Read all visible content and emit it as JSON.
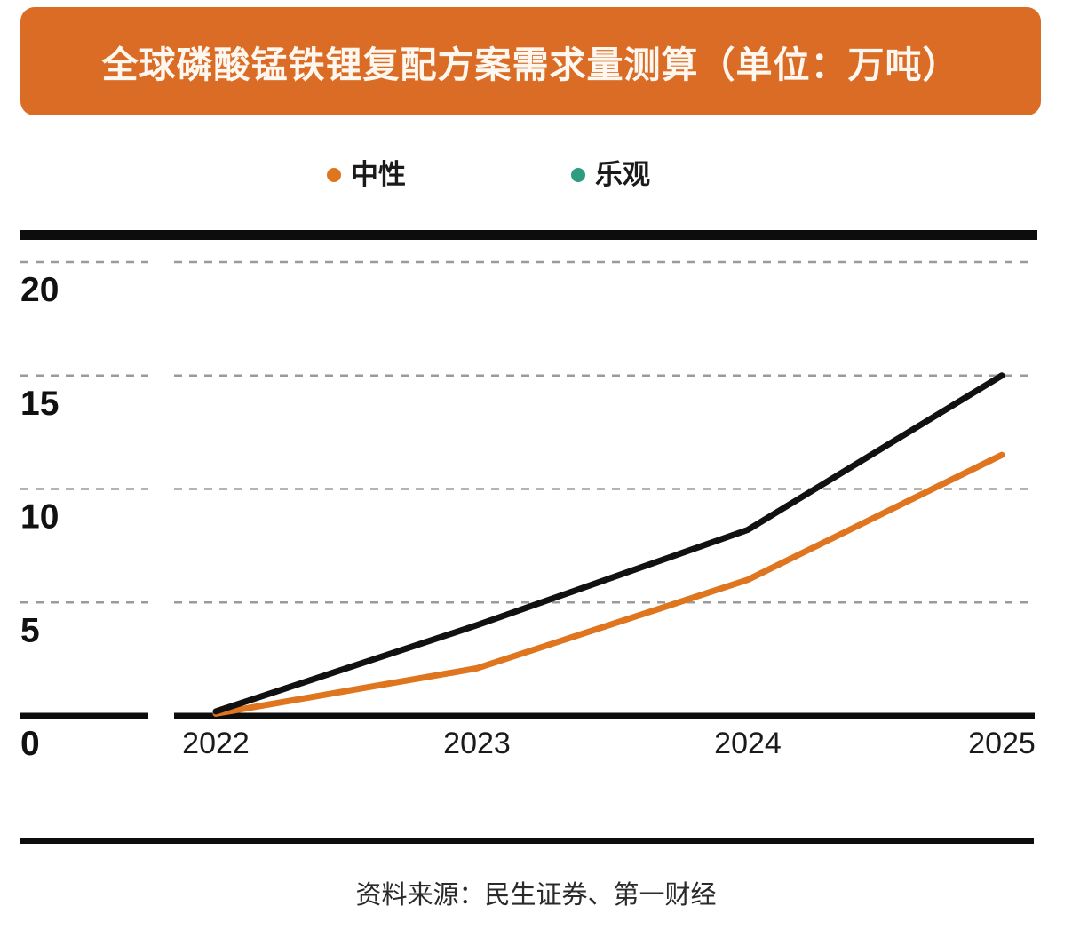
{
  "header": {
    "title": "全球磷酸锰铁锂复配方案需求量测算（单位：万吨）",
    "bg_color": "#da6c26",
    "text_color": "#fdf7ef"
  },
  "chart_data": {
    "type": "line",
    "title": "全球磷酸锰铁锂复配方案需求量测算",
    "unit": "万吨",
    "categories": [
      "2022",
      "2023",
      "2024",
      "2025"
    ],
    "series": [
      {
        "name": "中性",
        "values": [
          0.1,
          2.1,
          6.0,
          11.5
        ],
        "line_color": "#e0751f",
        "marker_color": "#e0751f"
      },
      {
        "name": "乐观",
        "values": [
          0.2,
          4.0,
          8.2,
          15.0
        ],
        "line_color": "#111111",
        "marker_color": "#2d9c80"
      }
    ],
    "y_ticks": [
      20,
      15,
      10,
      5,
      0
    ],
    "ylim": [
      0,
      21.5
    ],
    "xlabel": "",
    "ylabel": "万吨",
    "grid": "dashed-horizontal",
    "legend_position": "top"
  },
  "footer": {
    "source": "资料来源：民生证券、第一财经"
  }
}
